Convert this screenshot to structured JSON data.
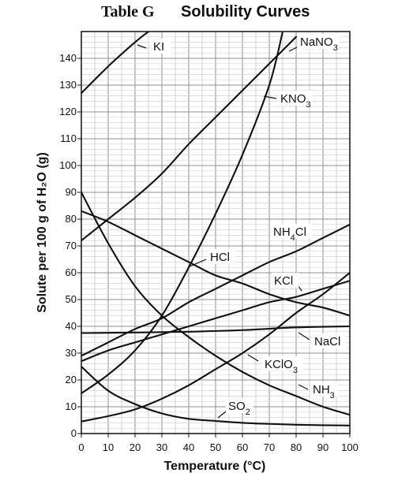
{
  "chart_data": {
    "type": "line",
    "title_prefix": "Table G",
    "title": "Solubility Curves",
    "xlabel": "Temperature (°C)",
    "ylabel": "Solute per 100 g of H₂O (g)",
    "xlim": [
      0,
      100
    ],
    "ylim": [
      0,
      150
    ],
    "grid": true,
    "x_ticks": [
      0,
      10,
      20,
      30,
      40,
      50,
      60,
      70,
      80,
      90,
      100
    ],
    "y_ticks": [
      0,
      10,
      20,
      30,
      40,
      50,
      60,
      70,
      80,
      90,
      100,
      110,
      120,
      130,
      140
    ],
    "series": [
      {
        "name": "KI",
        "label_main": "KI",
        "label_sub": "",
        "label_suffix": "",
        "points": [
          [
            0,
            127
          ],
          [
            10,
            137
          ],
          [
            20,
            146
          ],
          [
            25,
            150
          ]
        ]
      },
      {
        "name": "NaNO3",
        "label_main": "NaNO",
        "label_sub": "3",
        "label_suffix": "",
        "points": [
          [
            0,
            72
          ],
          [
            10,
            80
          ],
          [
            20,
            88
          ],
          [
            30,
            97
          ],
          [
            40,
            108
          ],
          [
            50,
            118
          ],
          [
            60,
            128
          ],
          [
            70,
            138
          ],
          [
            80,
            148
          ]
        ]
      },
      {
        "name": "KNO3",
        "label_main": "KNO",
        "label_sub": "3",
        "label_suffix": "",
        "points": [
          [
            0,
            15
          ],
          [
            10,
            22
          ],
          [
            20,
            31
          ],
          [
            30,
            44
          ],
          [
            40,
            62
          ],
          [
            50,
            82
          ],
          [
            60,
            104
          ],
          [
            70,
            130
          ],
          [
            75,
            150
          ]
        ]
      },
      {
        "name": "NH4Cl",
        "label_main": "NH",
        "label_sub": "4",
        "label_suffix": "Cl",
        "points": [
          [
            0,
            29
          ],
          [
            10,
            34
          ],
          [
            20,
            39
          ],
          [
            30,
            43
          ],
          [
            40,
            49
          ],
          [
            50,
            54
          ],
          [
            60,
            59
          ],
          [
            70,
            64
          ],
          [
            80,
            68
          ],
          [
            90,
            73
          ],
          [
            100,
            78
          ]
        ]
      },
      {
        "name": "HCl",
        "label_main": "HCl",
        "label_sub": "",
        "label_suffix": "",
        "points": [
          [
            0,
            83
          ],
          [
            10,
            79
          ],
          [
            20,
            74
          ],
          [
            30,
            69
          ],
          [
            40,
            64
          ],
          [
            50,
            59
          ],
          [
            60,
            56
          ],
          [
            70,
            52
          ],
          [
            80,
            49
          ],
          [
            90,
            47
          ],
          [
            100,
            44
          ]
        ]
      },
      {
        "name": "KCl",
        "label_main": "KCl",
        "label_sub": "",
        "label_suffix": "",
        "points": [
          [
            0,
            27
          ],
          [
            10,
            31
          ],
          [
            20,
            34
          ],
          [
            30,
            37
          ],
          [
            40,
            40
          ],
          [
            50,
            43
          ],
          [
            60,
            46
          ],
          [
            70,
            49
          ],
          [
            80,
            51
          ],
          [
            90,
            54
          ],
          [
            100,
            57
          ]
        ]
      },
      {
        "name": "NaCl",
        "label_main": "NaCl",
        "label_sub": "",
        "label_suffix": "",
        "points": [
          [
            0,
            37.5
          ],
          [
            20,
            37.7
          ],
          [
            40,
            38
          ],
          [
            60,
            38.6
          ],
          [
            80,
            39.6
          ],
          [
            100,
            40
          ]
        ]
      },
      {
        "name": "KClO3",
        "label_main": "KClO",
        "label_sub": "3",
        "label_suffix": "",
        "points": [
          [
            0,
            4.5
          ],
          [
            10,
            6.5
          ],
          [
            20,
            9
          ],
          [
            30,
            13
          ],
          [
            40,
            18
          ],
          [
            50,
            24
          ],
          [
            60,
            30
          ],
          [
            70,
            37
          ],
          [
            80,
            45
          ],
          [
            90,
            52
          ],
          [
            100,
            60
          ]
        ]
      },
      {
        "name": "NH3",
        "label_main": "NH",
        "label_sub": "3",
        "label_suffix": "",
        "points": [
          [
            0,
            90
          ],
          [
            10,
            71
          ],
          [
            20,
            55
          ],
          [
            30,
            44
          ],
          [
            40,
            36
          ],
          [
            50,
            29
          ],
          [
            60,
            23
          ],
          [
            70,
            18
          ],
          [
            80,
            14
          ],
          [
            90,
            10
          ],
          [
            100,
            7
          ]
        ]
      },
      {
        "name": "SO2",
        "label_main": "SO",
        "label_sub": "2",
        "label_suffix": "",
        "points": [
          [
            0,
            25
          ],
          [
            10,
            16
          ],
          [
            20,
            11
          ],
          [
            30,
            7.5
          ],
          [
            40,
            5.5
          ],
          [
            50,
            4.7
          ],
          [
            60,
            4
          ],
          [
            70,
            3.6
          ],
          [
            80,
            3.3
          ],
          [
            90,
            3.1
          ],
          [
            100,
            3
          ]
        ]
      }
    ]
  }
}
